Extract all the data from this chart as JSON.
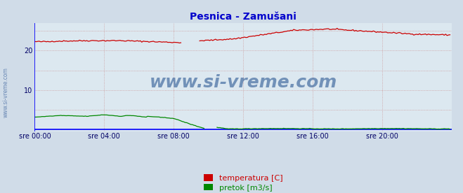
{
  "title": "Pesnica - Zamušani",
  "title_color": "#0000cc",
  "bg_color": "#d0dce8",
  "plot_bg_color": "#dce8f0",
  "grid_color": "#cc9999",
  "x_labels": [
    "sre 00:00",
    "sre 04:00",
    "sre 08:00",
    "sre 12:00",
    "sre 16:00",
    "sre 20:00"
  ],
  "y_ticks": [
    10,
    20
  ],
  "y_lim": [
    -0.5,
    27
  ],
  "x_lim": [
    0,
    288
  ],
  "watermark": "www.si-vreme.com",
  "watermark_color": "#1a4a8a",
  "side_label": "www.si-vreme.com",
  "legend": [
    {
      "label": "temperatura [C]",
      "color": "#cc0000"
    },
    {
      "label": "pretok [m3/s]",
      "color": "#008800"
    }
  ],
  "x_tick_positions": [
    0,
    48,
    96,
    144,
    192,
    240
  ]
}
